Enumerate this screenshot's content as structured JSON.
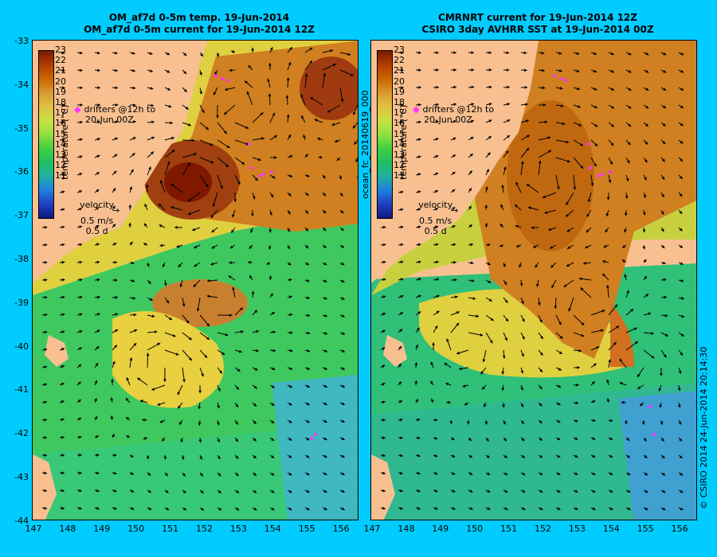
{
  "left_panel": {
    "title_line1": "OM_af7d 0-5m temp. 19-Jun-2014",
    "title_line2": "OM_af7d 0-5m current for 19-Jun-2014 12Z",
    "side_label": "ocean_fc_20140619_000"
  },
  "right_panel": {
    "title_line1": "CMRNRT current for 19-Jun-2014 12Z",
    "title_line2": "CSIRO 3day AVHRR SST at 19-Jun-2014 00Z",
    "side_label": "© CSIRO 2014   24-Jun-2014 20:14:30"
  },
  "axes": {
    "lat_labels": [
      "-33",
      "-34",
      "-35",
      "-36",
      "-37",
      "-38",
      "-39",
      "-40",
      "-41",
      "-42",
      "-43",
      "-44"
    ],
    "lon_labels": [
      "147",
      "148",
      "149",
      "150",
      "151",
      "152",
      "153",
      "154",
      "155",
      "156"
    ]
  },
  "colorbar": {
    "label": "temperature (°C)",
    "ticks": [
      "23",
      "22",
      "21",
      "20",
      "19",
      "18",
      "17",
      "16",
      "15",
      "14",
      "13",
      "12",
      "11"
    ],
    "colors": [
      "#7a1a00",
      "#b23c00",
      "#cc6600",
      "#d89a30",
      "#e0c040",
      "#c8e040",
      "#90e040",
      "#40d040",
      "#20c060",
      "#20b0a0",
      "#2080e0",
      "#2040c0",
      "#101880"
    ]
  },
  "legend": {
    "drifters_line1": "drifters @12h to",
    "drifters_line2": "20-Jun 00Z",
    "velocity_label": "velocity",
    "velocity_scale": "0.5 m/s",
    "velocity_time": "0.5 d"
  }
}
